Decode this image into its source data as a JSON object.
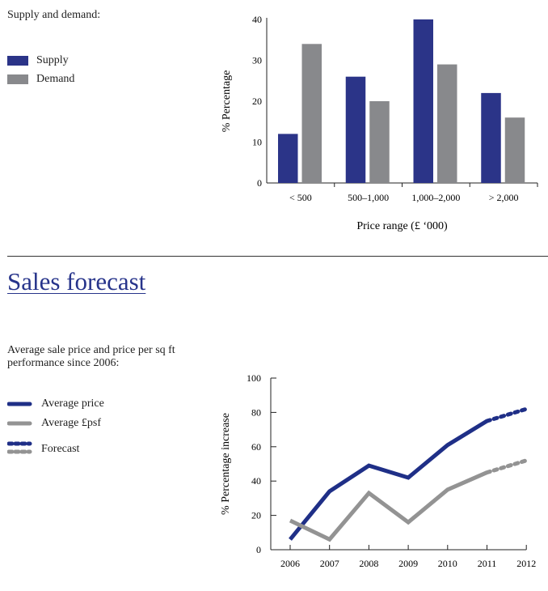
{
  "section1": {
    "intro": "Supply and demand:",
    "legend": [
      "Supply",
      "Demand"
    ]
  },
  "section2": {
    "title": "Sales forecast",
    "intro_line1": "Average sale price and price per sq ft",
    "intro_line2": "performance since 2006:",
    "legend": [
      "Average price",
      "Average £psf",
      "Forecast"
    ]
  },
  "colors": {
    "supply": "#2b3488",
    "demand": "#88898c",
    "price": "#1f2f87",
    "psf": "#939393"
  },
  "chart_data": [
    {
      "type": "bar",
      "title": "Supply and demand",
      "categories": [
        "< 500",
        "500–1,000",
        "1,000–2,000",
        "> 2,000"
      ],
      "series": [
        {
          "name": "Supply",
          "values": [
            12,
            26,
            40,
            22
          ]
        },
        {
          "name": "Demand",
          "values": [
            34,
            20,
            29,
            16
          ]
        }
      ],
      "xlabel": "Price range (£ ‘000)",
      "ylabel": "% Percentage",
      "ylim": [
        0,
        40
      ],
      "yticks": [
        0,
        10,
        20,
        30,
        40
      ],
      "legend": "left"
    },
    {
      "type": "line",
      "title": "Sales forecast",
      "x": [
        "2006",
        "2007",
        "2008",
        "2009",
        "2010",
        "2011",
        "2012"
      ],
      "series": [
        {
          "name": "Average price",
          "values": [
            6,
            34,
            49,
            42,
            61,
            75,
            82
          ],
          "forecast_from": "2011"
        },
        {
          "name": "Average £psf",
          "values": [
            17,
            6,
            33,
            16,
            35,
            45,
            52
          ],
          "forecast_from": "2011"
        }
      ],
      "xlabel": "",
      "ylabel": "% Percentage increase",
      "ylim": [
        0,
        100
      ],
      "yticks": [
        0,
        20,
        40,
        60,
        80,
        100
      ],
      "legend": "left"
    }
  ]
}
